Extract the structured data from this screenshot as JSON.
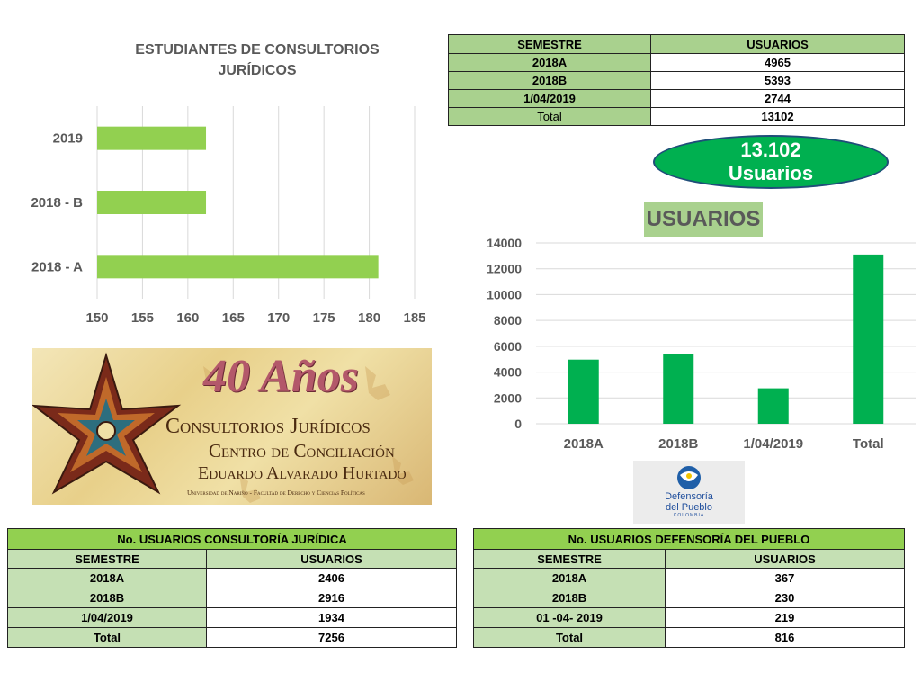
{
  "bar_chart": {
    "title_line1": "ESTUDIANTES DE CONSULTORIOS",
    "title_line2": "JURÍDICOS"
  },
  "top_table": {
    "headers": [
      "SEMESTRE",
      "USUARIOS"
    ],
    "rows": [
      [
        "2018A",
        "4965"
      ],
      [
        "2018B",
        "5393"
      ],
      [
        "1/04/2019",
        "2744"
      ],
      [
        "Total",
        "13102"
      ]
    ]
  },
  "badge": {
    "line1": "13.102",
    "line2": "Usuarios"
  },
  "column_chart": {
    "title": "USUARIOS"
  },
  "logo": {
    "line1": "40 Años",
    "line2": "Consultorios Jurídicos",
    "line3": "Centro de Conciliación",
    "line4": "Eduardo Alvarado Hurtado",
    "line5": "Universidad de Nariño - Facultad de Derecho y Ciencias Políticas"
  },
  "defensoria_logo": {
    "line1": "Defensoría",
    "line2": "del Pueblo",
    "line3": "COLOMBIA"
  },
  "table_consultoria": {
    "title": "No. USUARIOS CONSULTORÍA JURÍDICA",
    "headers": [
      "SEMESTRE",
      "USUARIOS"
    ],
    "rows": [
      [
        "2018A",
        "2406"
      ],
      [
        "2018B",
        "2916"
      ],
      [
        "1/04/2019",
        "1934"
      ],
      [
        "Total",
        "7256"
      ]
    ]
  },
  "table_defensoria": {
    "title": "No. USUARIOS DEFENSORÍA DEL PUEBLO",
    "headers": [
      "SEMESTRE",
      "USUARIOS"
    ],
    "rows": [
      [
        "2018A",
        "367"
      ],
      [
        "2018B",
        "230"
      ],
      [
        "01 -04- 2019",
        "219"
      ],
      [
        "Total",
        "816"
      ]
    ]
  },
  "colors": {
    "bar_green": "#92d050",
    "column_green": "#00b050",
    "header_green": "#a9d18e"
  },
  "chart_data": [
    {
      "type": "bar",
      "orientation": "horizontal",
      "title": "ESTUDIANTES DE CONSULTORIOS JURÍDICOS",
      "categories": [
        "2019",
        "2018 - B",
        "2018 - A"
      ],
      "values": [
        162,
        162,
        181
      ],
      "xlim": [
        150,
        185
      ],
      "xticks": [
        150,
        155,
        160,
        165,
        170,
        175,
        180,
        185
      ],
      "grid": true,
      "color": "#92d050"
    },
    {
      "type": "bar",
      "title": "USUARIOS",
      "categories": [
        "2018A",
        "2018B",
        "1/04/2019",
        "Total"
      ],
      "values": [
        4965,
        5393,
        2744,
        13102
      ],
      "ylim": [
        0,
        14000
      ],
      "yticks": [
        0,
        2000,
        4000,
        6000,
        8000,
        10000,
        12000,
        14000
      ],
      "grid": true,
      "color": "#00b050"
    }
  ]
}
